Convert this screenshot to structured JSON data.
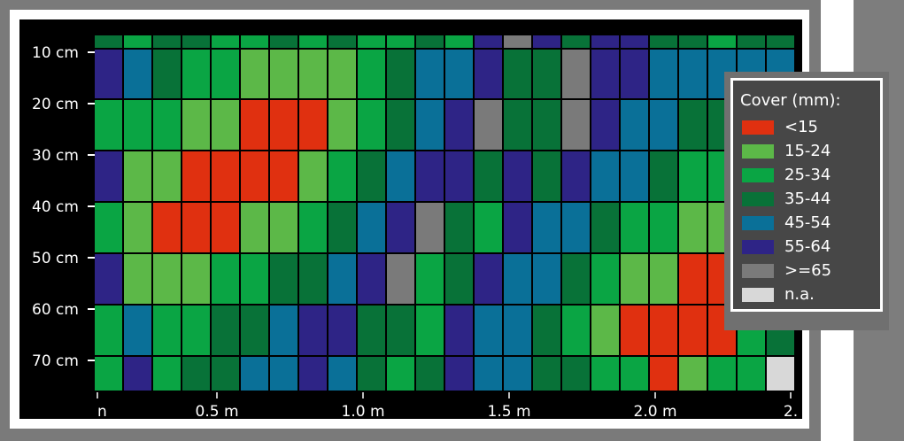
{
  "chart_data": {
    "type": "heatmap",
    "title": "",
    "xlabel": "",
    "ylabel": "",
    "y_tick_labels": [
      "10 cm",
      "20 cm",
      "30 cm",
      "40 cm",
      "50 cm",
      "60 cm",
      "70 cm"
    ],
    "x_tick_labels": [
      "n",
      "0.5 m",
      "1.0 m",
      "1.5 m",
      "2.0 m",
      "2."
    ],
    "legend": {
      "title": "Cover (mm):",
      "placement": "right",
      "entries": [
        {
          "label": "<15",
          "color": "#e03010"
        },
        {
          "label": "15-24",
          "color": "#5cb848"
        },
        {
          "label": "25-34",
          "color": "#0aa544"
        },
        {
          "label": "35-44",
          "color": "#087238"
        },
        {
          "label": "45-54",
          "color": "#0a7098"
        },
        {
          "label": "55-64",
          "color": "#2e2486"
        },
        {
          "label": ">=65",
          "color": "#7a7a7a"
        },
        {
          "label": "n.a.",
          "color": "#d8d8d8"
        }
      ]
    },
    "category_codes": {
      "1": "<15",
      "2": "15-24",
      "3": "25-34",
      "4": "35-44",
      "5": "45-54",
      "6": "55-64",
      "7": ">=65",
      "8": "n.a."
    },
    "rows": [
      [
        4,
        3,
        4,
        4,
        3,
        3,
        4,
        3,
        4,
        3,
        3,
        4,
        3,
        6,
        7,
        6,
        4,
        6,
        6,
        4,
        4,
        3,
        4,
        4
      ],
      [
        6,
        5,
        4,
        3,
        3,
        2,
        2,
        2,
        2,
        3,
        4,
        5,
        5,
        6,
        4,
        4,
        7,
        6,
        6,
        5,
        5,
        5,
        5,
        5
      ],
      [
        3,
        3,
        3,
        2,
        2,
        1,
        1,
        1,
        2,
        3,
        4,
        5,
        6,
        7,
        4,
        4,
        7,
        6,
        5,
        5,
        4,
        4,
        4,
        4
      ],
      [
        6,
        2,
        2,
        1,
        1,
        1,
        1,
        2,
        3,
        4,
        5,
        6,
        6,
        4,
        6,
        4,
        6,
        5,
        5,
        4,
        3,
        3,
        4,
        4
      ],
      [
        3,
        2,
        1,
        1,
        1,
        2,
        2,
        3,
        4,
        5,
        6,
        7,
        4,
        3,
        6,
        5,
        5,
        4,
        3,
        3,
        2,
        2,
        4,
        4
      ],
      [
        6,
        2,
        2,
        2,
        3,
        3,
        4,
        4,
        5,
        6,
        7,
        3,
        4,
        6,
        5,
        5,
        4,
        3,
        2,
        2,
        1,
        1,
        4,
        4
      ],
      [
        3,
        5,
        3,
        3,
        4,
        4,
        5,
        6,
        6,
        4,
        4,
        3,
        6,
        5,
        5,
        4,
        3,
        2,
        1,
        1,
        1,
        1,
        3,
        4
      ],
      [
        3,
        6,
        3,
        4,
        4,
        5,
        5,
        6,
        5,
        4,
        3,
        4,
        6,
        5,
        5,
        4,
        4,
        3,
        3,
        1,
        2,
        3,
        3,
        8
      ]
    ]
  }
}
